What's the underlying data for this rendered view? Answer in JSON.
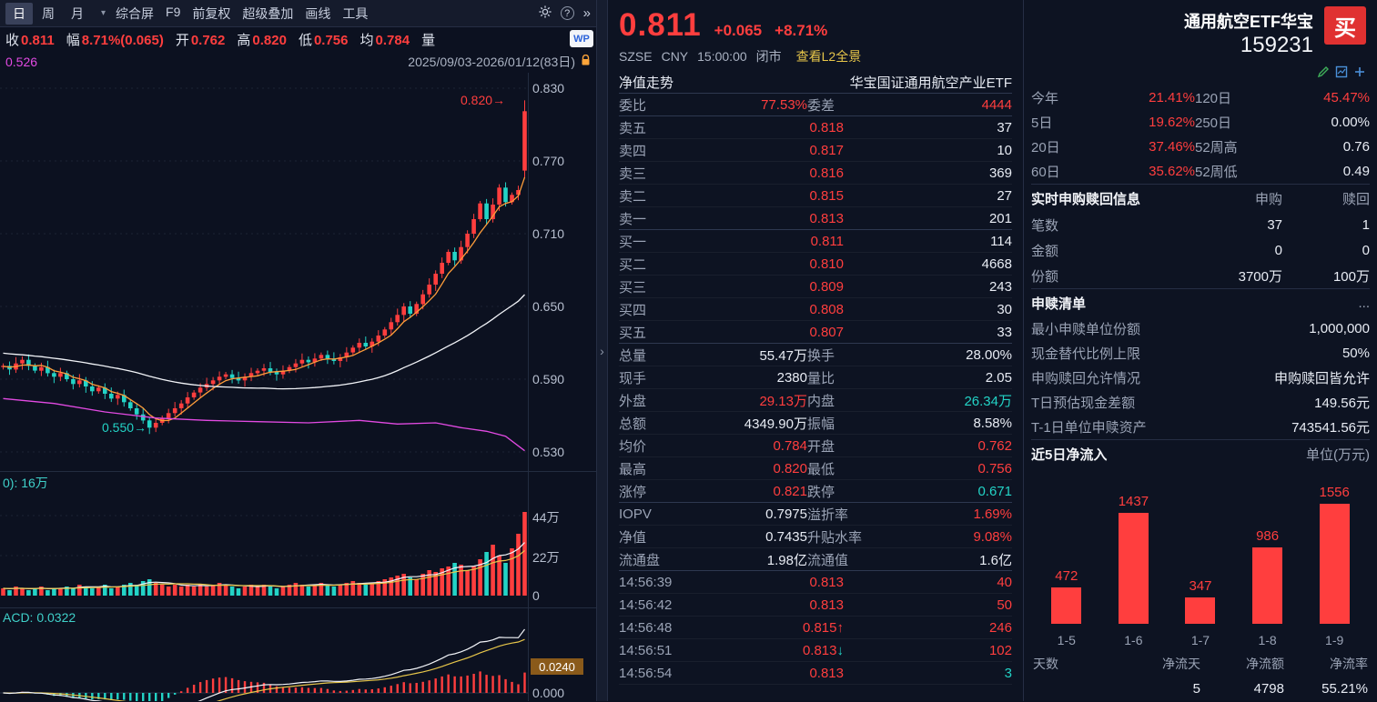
{
  "colors": {
    "up": "#ff3e3e",
    "down": "#23d3c6",
    "yellow": "#e7c64a",
    "magenta": "#e24ae2",
    "orange": "#ff9d3a",
    "buy_button": "#e03131",
    "macd_tag_bg": "#8a5a1a"
  },
  "toolbar": {
    "tabs": [
      {
        "label": "日",
        "selected": true
      },
      {
        "label": "周",
        "selected": false
      },
      {
        "label": "月",
        "selected": false
      }
    ],
    "caret": "▾",
    "items": [
      "综合屏",
      "F9",
      "前复权",
      "超级叠加",
      "画线",
      "工具"
    ],
    "help": "?",
    "more": "»",
    "wp_badge": "WP"
  },
  "info_row": {
    "pairs": [
      {
        "label": "收",
        "value": "0.811"
      },
      {
        "label": "幅",
        "value": "8.71%(0.065)"
      },
      {
        "label": "开",
        "value": "0.762"
      },
      {
        "label": "高",
        "value": "0.820"
      },
      {
        "label": "低",
        "value": "0.756"
      },
      {
        "label": "均",
        "value": "0.784"
      },
      {
        "label": "量",
        "value": ""
      }
    ],
    "legend_value": "0.526",
    "date_range": "2025/09/03-2026/01/12(83日)"
  },
  "main_chart": {
    "axis": [
      "0.830",
      "0.770",
      "0.710",
      "0.650",
      "0.590",
      "0.530"
    ],
    "ann_high": "0.820→",
    "ann_low": "0.550→",
    "pre_closes": [
      0.62,
      0.619,
      0.618,
      0.618,
      0.617,
      0.616,
      0.615,
      0.615,
      0.614,
      0.613,
      0.612,
      0.612,
      0.611,
      0.61,
      0.609,
      0.609,
      0.608,
      0.607,
      0.606,
      0.606,
      0.605,
      0.604,
      0.604,
      0.603,
      0.602,
      0.602,
      0.601,
      0.601,
      0.6,
      0.6
    ],
    "closes": [
      0.601,
      0.598,
      0.603,
      0.606,
      0.601,
      0.597,
      0.6,
      0.595,
      0.592,
      0.595,
      0.59,
      0.586,
      0.589,
      0.584,
      0.58,
      0.583,
      0.578,
      0.574,
      0.577,
      0.571,
      0.566,
      0.561,
      0.556,
      0.55,
      0.554,
      0.558,
      0.562,
      0.566,
      0.57,
      0.575,
      0.579,
      0.583,
      0.586,
      0.589,
      0.592,
      0.594,
      0.591,
      0.589,
      0.592,
      0.595,
      0.597,
      0.599,
      0.596,
      0.594,
      0.597,
      0.6,
      0.603,
      0.606,
      0.604,
      0.607,
      0.61,
      0.607,
      0.605,
      0.608,
      0.612,
      0.616,
      0.62,
      0.617,
      0.621,
      0.626,
      0.631,
      0.637,
      0.643,
      0.65,
      0.644,
      0.652,
      0.66,
      0.668,
      0.677,
      0.686,
      0.695,
      0.688,
      0.699,
      0.71,
      0.722,
      0.735,
      0.722,
      0.734,
      0.748,
      0.736,
      0.742,
      0.746,
      0.811
    ],
    "last": {
      "open": 0.762,
      "high": 0.82,
      "low": 0.756,
      "close": 0.811
    },
    "ma_magenta": [
      [
        0,
        0.574
      ],
      [
        8,
        0.57
      ],
      [
        16,
        0.563
      ],
      [
        24,
        0.558
      ],
      [
        32,
        0.556
      ],
      [
        40,
        0.555
      ],
      [
        48,
        0.554
      ],
      [
        56,
        0.556
      ],
      [
        62,
        0.553
      ],
      [
        68,
        0.554
      ],
      [
        72,
        0.55
      ],
      [
        76,
        0.547
      ],
      [
        79,
        0.543
      ],
      [
        82,
        0.531
      ]
    ]
  },
  "volume_pane": {
    "legend": "0): 16万",
    "axis": [
      "44万",
      "22万",
      "0"
    ],
    "vols": [
      4,
      3,
      5,
      4,
      3,
      4,
      5,
      3,
      4,
      4,
      5,
      4,
      6,
      5,
      4,
      5,
      6,
      4,
      5,
      6,
      7,
      6,
      8,
      9,
      7,
      6,
      5,
      6,
      5,
      6,
      5,
      6,
      5,
      6,
      7,
      6,
      5,
      4,
      5,
      6,
      5,
      6,
      5,
      4,
      5,
      6,
      7,
      6,
      5,
      6,
      7,
      6,
      5,
      6,
      7,
      8,
      7,
      6,
      7,
      8,
      9,
      10,
      11,
      12,
      10,
      9,
      12,
      14,
      13,
      15,
      16,
      18,
      17,
      14,
      16,
      20,
      24,
      28,
      22,
      18,
      26,
      34,
      46
    ]
  },
  "macd_pane": {
    "legend": "ACD: 0.0322",
    "tag": "0.0240",
    "axis_zero": "0.000"
  },
  "collapse": {
    "arrow": "›"
  },
  "quote": {
    "price": "0.811",
    "change": "+0.065",
    "pct": "+8.71%",
    "exchange": "SZSE",
    "currency": "CNY",
    "time": "15:00:00",
    "status": "闭市",
    "l2_link": "查看L2全景",
    "nav_label": "净值走势",
    "fund_name": "华宝国证通用航空产业ETF",
    "weibi_label": "委比",
    "weibi": "77.53%",
    "weicha_label": "委差",
    "weicha": "4444"
  },
  "orderbook": {
    "asks": [
      {
        "label": "卖五",
        "price": "0.818",
        "qty": "37"
      },
      {
        "label": "卖四",
        "price": "0.817",
        "qty": "10"
      },
      {
        "label": "卖三",
        "price": "0.816",
        "qty": "369"
      },
      {
        "label": "卖二",
        "price": "0.815",
        "qty": "27"
      },
      {
        "label": "卖一",
        "price": "0.813",
        "qty": "201"
      }
    ],
    "bids": [
      {
        "label": "买一",
        "price": "0.811",
        "qty": "114"
      },
      {
        "label": "买二",
        "price": "0.810",
        "qty": "4668"
      },
      {
        "label": "买三",
        "price": "0.809",
        "qty": "243"
      },
      {
        "label": "买四",
        "price": "0.808",
        "qty": "30"
      },
      {
        "label": "买五",
        "price": "0.807",
        "qty": "33"
      }
    ]
  },
  "stats_rows": [
    {
      "l1": "总量",
      "v1": "55.47万",
      "c1": "flat",
      "l2": "换手",
      "v2": "28.00%",
      "c2": "flat"
    },
    {
      "l1": "现手",
      "v1": "2380",
      "c1": "flat",
      "l2": "量比",
      "v2": "2.05",
      "c2": "flat"
    },
    {
      "l1": "外盘",
      "v1": "29.13万",
      "c1": "up",
      "l2": "内盘",
      "v2": "26.34万",
      "c2": "down"
    },
    {
      "l1": "总额",
      "v1": "4349.90万",
      "c1": "flat",
      "l2": "振幅",
      "v2": "8.58%",
      "c2": "flat"
    },
    {
      "l1": "均价",
      "v1": "0.784",
      "c1": "up",
      "l2": "开盘",
      "v2": "0.762",
      "c2": "up"
    },
    {
      "l1": "最高",
      "v1": "0.820",
      "c1": "up",
      "l2": "最低",
      "v2": "0.756",
      "c2": "up"
    },
    {
      "l1": "涨停",
      "v1": "0.821",
      "c1": "up",
      "l2": "跌停",
      "v2": "0.671",
      "c2": "down"
    }
  ],
  "valuation_rows": [
    {
      "l1": "IOPV",
      "v1": "0.7975",
      "c1": "flat",
      "l2": "溢折率",
      "v2": "1.69%",
      "c2": "up"
    },
    {
      "l1": "净值",
      "v1": "0.7435",
      "c1": "flat",
      "l2": "升贴水率",
      "v2": "9.08%",
      "c2": "up"
    },
    {
      "l1": "流通盘",
      "v1": "1.98亿",
      "c1": "flat",
      "l2": "流通值",
      "v2": "1.6亿",
      "c2": "flat"
    }
  ],
  "ticks": [
    {
      "time": "14:56:39",
      "price": "0.813",
      "arrow": "",
      "ac": "up",
      "qty": "40",
      "qc": "up"
    },
    {
      "time": "14:56:42",
      "price": "0.813",
      "arrow": "",
      "ac": "up",
      "qty": "50",
      "qc": "up"
    },
    {
      "time": "14:56:48",
      "price": "0.815",
      "arrow": "↑",
      "ac": "up",
      "qty": "246",
      "qc": "up"
    },
    {
      "time": "14:56:51",
      "price": "0.813",
      "arrow": "↓",
      "ac": "down",
      "qty": "102",
      "qc": "up"
    },
    {
      "time": "14:56:54",
      "price": "0.813",
      "arrow": "",
      "ac": "up",
      "qty": "3",
      "qc": "down"
    }
  ],
  "right": {
    "title": "通用航空ETF华宝",
    "buy": "买",
    "code": "159231",
    "perf": [
      {
        "l1": "今年",
        "v1": "21.41%",
        "c1": "up",
        "l2": "120日",
        "v2": "45.47%",
        "c2": "up"
      },
      {
        "l1": "5日",
        "v1": "19.62%",
        "c1": "up",
        "l2": "250日",
        "v2": "0.00%",
        "c2": "flat"
      },
      {
        "l1": "20日",
        "v1": "37.46%",
        "c1": "up",
        "l2": "52周高",
        "v2": "0.76",
        "c2": "flat"
      },
      {
        "l1": "60日",
        "v1": "35.62%",
        "c1": "up",
        "l2": "52周低",
        "v2": "0.49",
        "c2": "flat"
      }
    ],
    "sub_section": {
      "title": "实时申购赎回信息",
      "col1": "申购",
      "col2": "赎回",
      "rows": [
        {
          "label": "笔数",
          "v1": "37",
          "v2": "1"
        },
        {
          "label": "金额",
          "v1": "0",
          "v2": "0"
        },
        {
          "label": "份额",
          "v1": "3700万",
          "v2": "100万"
        }
      ]
    },
    "list_section": {
      "title": "申赎清单",
      "more": "...",
      "rows": [
        {
          "label": "最小申赎单位份额",
          "value": "1,000,000"
        },
        {
          "label": "现金替代比例上限",
          "value": "50%"
        },
        {
          "label": "申购赎回允许情况",
          "value": "申购赎回皆允许"
        },
        {
          "label": "T日预估现金差额",
          "value": "149.56元"
        },
        {
          "label": "T-1日单位申赎资产",
          "value": "743541.56元"
        }
      ]
    },
    "flow_section": {
      "title": "近5日净流入",
      "unit": "单位(万元)"
    },
    "flow_chart": {
      "type": "bar",
      "categories": [
        "1-5",
        "1-6",
        "1-7",
        "1-8",
        "1-9"
      ],
      "values": [
        472,
        1437,
        347,
        986,
        1556
      ]
    },
    "flow_stats": {
      "headers": [
        "天数",
        "净流天",
        "净流额",
        "净流率"
      ],
      "values": [
        "",
        "5",
        "4798",
        "55.21%"
      ]
    }
  }
}
